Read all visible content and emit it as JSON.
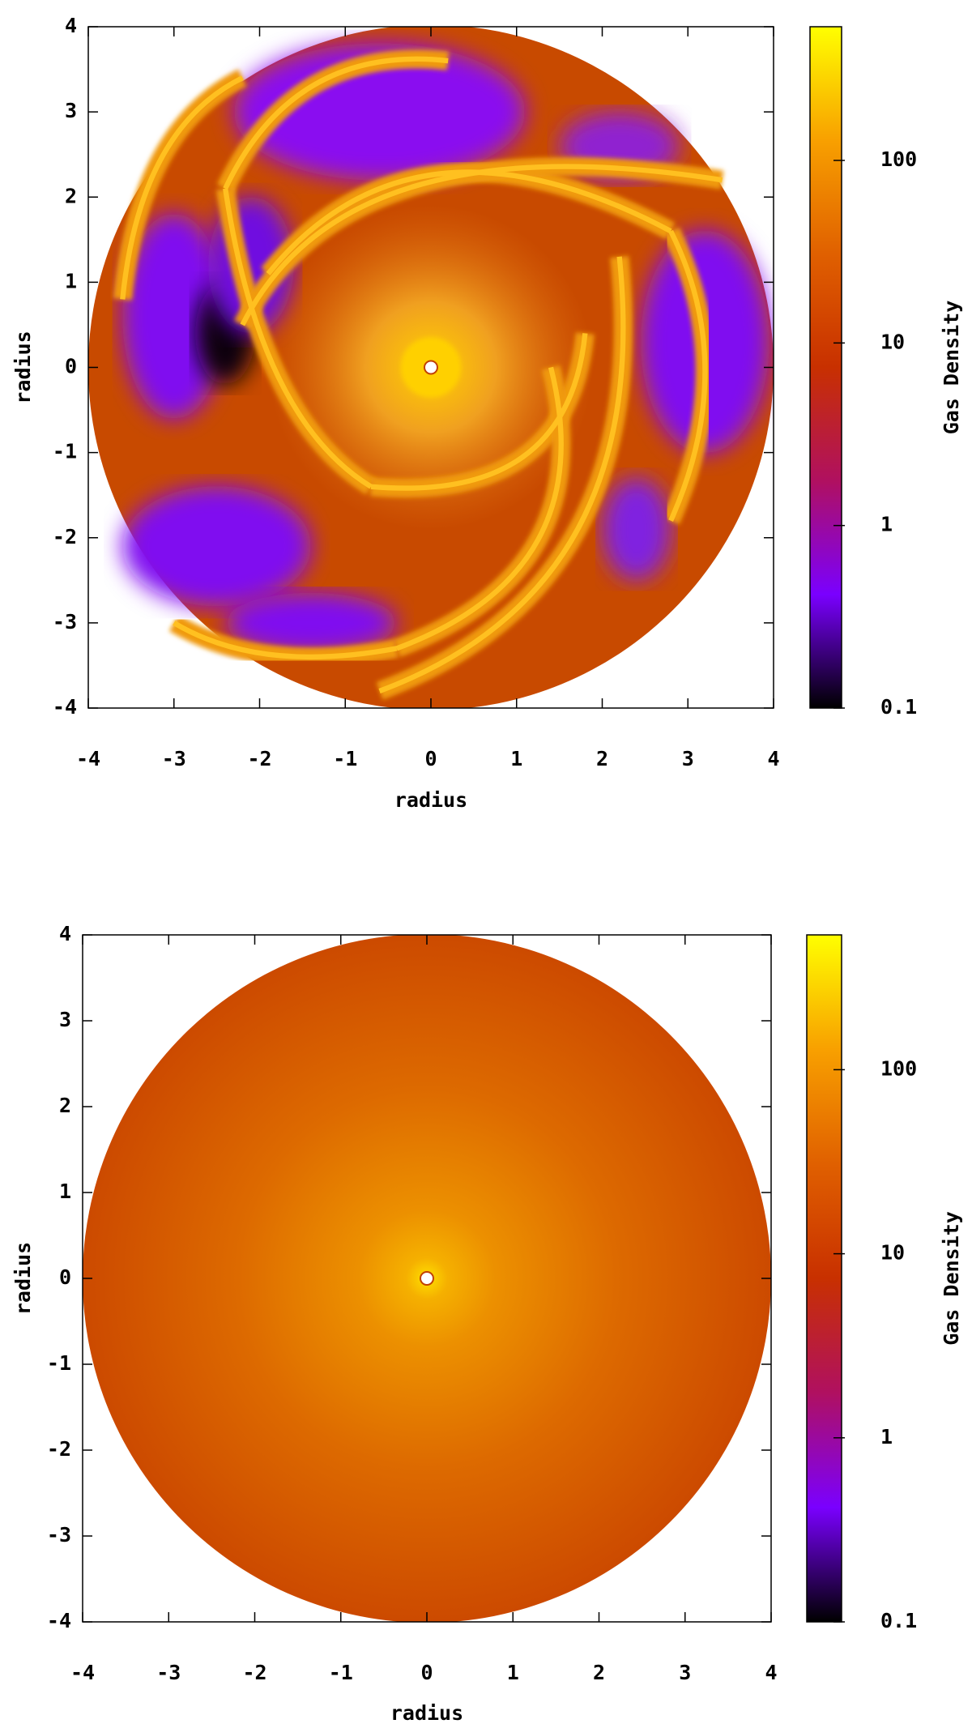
{
  "chart_data": [
    {
      "type": "heatmap",
      "x_label": "radius",
      "y_label": "radius",
      "xlim": [
        -4,
        4
      ],
      "ylim": [
        -4,
        4
      ],
      "xticks": [
        -4,
        -3,
        -2,
        -1,
        0,
        1,
        2,
        3,
        4
      ],
      "yticks": [
        -4,
        -3,
        -2,
        -1,
        0,
        1,
        2,
        3,
        4
      ],
      "colorbar": {
        "label": "Gas Density",
        "log": true,
        "lim": [
          0.1,
          540
        ],
        "ticks": [
          0.1,
          1,
          10,
          100
        ],
        "colormap": [
          "#000000",
          "#7a00ff",
          "#b01060",
          "#c83000",
          "#e06000",
          "#f8a000",
          "#ffff00"
        ]
      }
    },
    {
      "type": "heatmap",
      "x_label": "radius",
      "y_label": "radius",
      "xlim": [
        -4,
        4
      ],
      "ylim": [
        -4,
        4
      ],
      "xticks": [
        -4,
        -3,
        -2,
        -1,
        0,
        1,
        2,
        3,
        4
      ],
      "yticks": [
        -4,
        -3,
        -2,
        -1,
        0,
        1,
        2,
        3,
        4
      ],
      "colorbar": {
        "label": "Gas Density",
        "log": true,
        "lim": [
          0.1,
          540
        ],
        "ticks": [
          0.1,
          1,
          10,
          100
        ],
        "colormap": [
          "#000000",
          "#7a00ff",
          "#b01060",
          "#c83000",
          "#e06000",
          "#f8a000",
          "#ffff00"
        ]
      }
    }
  ]
}
